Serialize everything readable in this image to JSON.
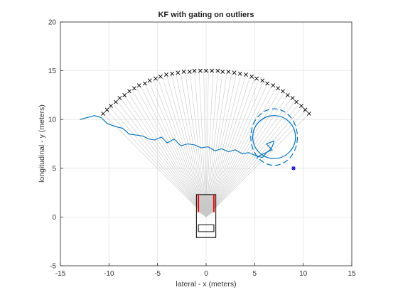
{
  "chart_data": {
    "type": "line",
    "title": "KF with gating on outliers",
    "xlabel": "lateral - x (meters)",
    "ylabel": "longitudinal - y (meters)",
    "xlim": [
      -15,
      15
    ],
    "ylim": [
      -5,
      20
    ],
    "xticks": [
      -15,
      -10,
      -5,
      0,
      5,
      10,
      15
    ],
    "yticks": [
      -5,
      0,
      5,
      10,
      15,
      20
    ],
    "grid": true,
    "colors": {
      "trajectory": "#0072BD",
      "beams": "#c8c8c8",
      "markers": "#000000",
      "outlier": "#0000CC",
      "vehicle": "#000000",
      "vehicle_highlight": "#FF0000"
    },
    "sensor_origin": [
      0,
      0
    ],
    "radar_range": 15,
    "sector_angle_deg": [
      -45,
      45
    ],
    "beam_count": 50,
    "series": [
      {
        "marker": "x",
        "points": [
          [
            -10.6,
            10.6
          ],
          [
            -10.2,
            11.0
          ],
          [
            -9.8,
            11.4
          ],
          [
            -9.3,
            11.8
          ],
          [
            -8.9,
            12.2
          ],
          [
            -8.4,
            12.5
          ],
          [
            -7.9,
            12.9
          ],
          [
            -7.4,
            13.2
          ],
          [
            -6.9,
            13.5
          ],
          [
            -6.3,
            13.7
          ],
          [
            -5.8,
            14.0
          ],
          [
            -5.2,
            14.2
          ],
          [
            -4.7,
            14.4
          ],
          [
            -4.1,
            14.6
          ],
          [
            -3.5,
            14.7
          ],
          [
            -2.9,
            14.8
          ],
          [
            -2.3,
            14.9
          ],
          [
            -1.7,
            14.9
          ],
          [
            -1.2,
            15.0
          ],
          [
            -0.6,
            15.0
          ],
          [
            0.0,
            15.0
          ],
          [
            0.6,
            15.0
          ],
          [
            1.2,
            15.0
          ],
          [
            1.7,
            14.9
          ],
          [
            2.3,
            14.9
          ],
          [
            2.9,
            14.8
          ],
          [
            3.5,
            14.7
          ],
          [
            4.1,
            14.6
          ],
          [
            4.7,
            14.4
          ],
          [
            5.2,
            14.2
          ],
          [
            5.8,
            14.0
          ],
          [
            6.3,
            13.7
          ],
          [
            6.9,
            13.5
          ],
          [
            7.4,
            13.2
          ],
          [
            7.9,
            12.9
          ],
          [
            8.4,
            12.5
          ],
          [
            8.9,
            12.2
          ],
          [
            9.3,
            11.8
          ],
          [
            9.8,
            11.4
          ],
          [
            10.2,
            11.0
          ],
          [
            10.6,
            10.6
          ]
        ]
      },
      {
        "line": "solid",
        "points": [
          [
            -13.0,
            10.0
          ],
          [
            -11.5,
            10.4
          ],
          [
            -10.8,
            10.2
          ],
          [
            -10.2,
            9.6
          ],
          [
            -9.4,
            9.3
          ],
          [
            -8.6,
            9.1
          ],
          [
            -7.9,
            8.5
          ],
          [
            -7.1,
            8.4
          ],
          [
            -6.5,
            8.3
          ],
          [
            -5.9,
            8.0
          ],
          [
            -5.3,
            7.9
          ],
          [
            -4.6,
            8.2
          ],
          [
            -4.0,
            7.6
          ],
          [
            -3.3,
            8.0
          ],
          [
            -2.6,
            7.3
          ],
          [
            -1.9,
            7.5
          ],
          [
            -1.2,
            7.4
          ],
          [
            -0.5,
            7.1
          ],
          [
            0.2,
            7.2
          ],
          [
            0.9,
            6.8
          ],
          [
            1.6,
            7.0
          ],
          [
            2.3,
            6.7
          ],
          [
            3.0,
            6.9
          ],
          [
            3.7,
            6.5
          ],
          [
            4.4,
            6.6
          ],
          [
            5.1,
            6.3
          ],
          [
            5.8,
            6.1
          ],
          [
            6.3,
            6.7
          ],
          [
            6.5,
            6.8
          ],
          [
            6.8,
            7.2
          ],
          [
            7.0,
            7.8
          ],
          [
            6.2,
            7.5
          ],
          [
            6.8,
            6.9
          ],
          [
            5.5,
            6.3
          ],
          [
            5.2,
            6.0
          ]
        ]
      },
      {
        "marker": "*",
        "points": [
          [
            9.0,
            5.0
          ]
        ]
      }
    ],
    "annotations": {
      "gate_inner": {
        "center": [
          7.0,
          8.2
        ],
        "radius": 2.2,
        "line": "solid"
      },
      "gate_outer": {
        "center": [
          7.0,
          8.2
        ],
        "radii": [
          2.4,
          2.9
        ],
        "line": "dashed"
      },
      "vehicle": {
        "x": [
          -1.0,
          1.0
        ],
        "y": [
          -2.1,
          2.3
        ]
      },
      "vehicle_cabin": {
        "x": [
          -0.8,
          0.8
        ],
        "y": [
          -1.5,
          -0.8
        ]
      },
      "vehicle_sides_red": {
        "x": [
          -0.8,
          0.8
        ],
        "y": [
          0.5,
          2.3
        ]
      }
    }
  }
}
